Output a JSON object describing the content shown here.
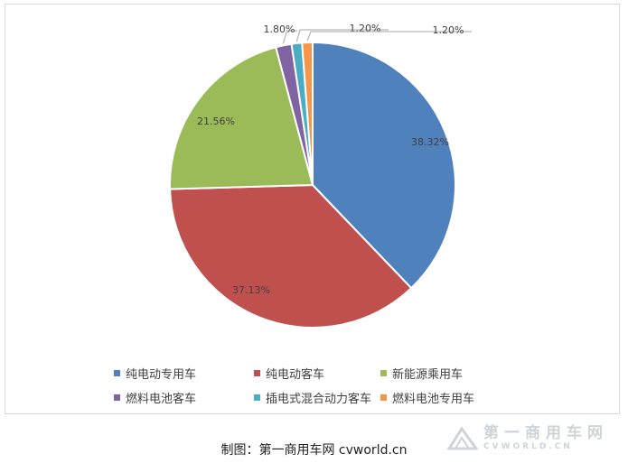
{
  "chart_data": {
    "type": "pie",
    "start_angle_deg": 0,
    "direction": "clockwise",
    "slices": [
      {
        "label": "纯电动专用车",
        "value": 38.32,
        "display": "38.32%",
        "color": "#4F81BD"
      },
      {
        "label": "纯电动客车",
        "value": 37.13,
        "display": "37.13%",
        "color": "#C0504D"
      },
      {
        "label": "新能源乘用车",
        "value": 21.56,
        "display": "21.56%",
        "color": "#9BBB59"
      },
      {
        "label": "燃料电池客车",
        "value": 1.8,
        "display": "1.80%",
        "color": "#8064A2"
      },
      {
        "label": "插电式混合动力客车",
        "value": 1.2,
        "display": "1.20%",
        "color": "#4BACC6"
      },
      {
        "label": "燃料电池专用车",
        "value": 1.2,
        "display": "1.20%",
        "color": "#F79646"
      }
    ],
    "legend_position": "bottom"
  },
  "caption": "制图：第一商用车网 cvworld.cn",
  "watermark": {
    "cn": "第一商用车网",
    "en": "CVWORLD.CN"
  }
}
